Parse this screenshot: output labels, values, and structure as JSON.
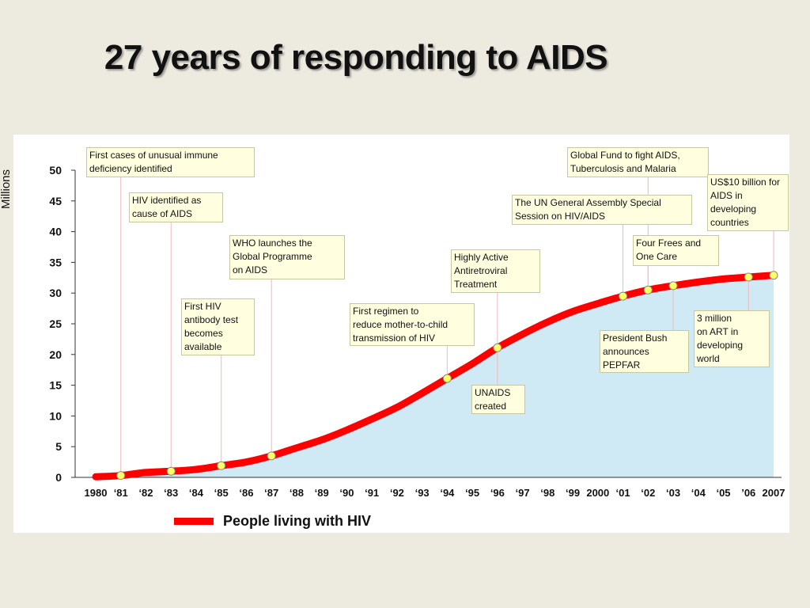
{
  "slide_title": "27 years of responding to AIDS",
  "colors": {
    "line": "#ff0000",
    "area": "#cfeaf5",
    "marker": "#ffff66",
    "guide": "#f0b8b8",
    "annotation_bg": "#ffffe0"
  },
  "chart_data": {
    "type": "area",
    "title": "27 years of responding to AIDS",
    "ylabel": "Millions",
    "xlabel": "",
    "ylim": [
      0,
      50
    ],
    "yticks": [
      0,
      5,
      10,
      15,
      20,
      25,
      30,
      35,
      40,
      45,
      50
    ],
    "categories": [
      "1980",
      "‘81",
      "‘82",
      "‘83",
      "‘84",
      "‘85",
      "‘86",
      "‘87",
      "‘88",
      "‘89",
      "‘90",
      "‘91",
      "‘92",
      "‘93",
      "‘94",
      "‘95",
      "‘96",
      "‘97",
      "‘98",
      "‘99",
      "2000",
      "‘01",
      "‘02",
      "‘03",
      "‘04",
      "‘05",
      "’06",
      "2007"
    ],
    "series": [
      {
        "name": "People living with HIV",
        "values": [
          0.1,
          0.3,
          0.8,
          1.0,
          1.3,
          1.9,
          2.5,
          3.5,
          4.8,
          6.1,
          7.7,
          9.5,
          11.4,
          13.7,
          16.1,
          18.5,
          21.1,
          23.3,
          25.3,
          27.0,
          28.3,
          29.5,
          30.5,
          31.2,
          31.8,
          32.3,
          32.6,
          32.9
        ]
      }
    ],
    "markers": [
      {
        "x": "‘81",
        "text": "First cases of unusual immune\ndeficiency identified"
      },
      {
        "x": "‘83",
        "text": "HIV identified as\ncause of AIDS"
      },
      {
        "x": "‘85",
        "text": "First HIV\nantibody test\nbecomes\navailable"
      },
      {
        "x": "‘87",
        "text": "WHO launches the\nGlobal Programme\non AIDS"
      },
      {
        "x": "‘94",
        "text": "First regimen to\nreduce mother-to-child\ntransmission of HIV"
      },
      {
        "x": "‘96",
        "text": "Highly Active\nAntiretroviral\nTreatment"
      },
      {
        "x": "‘96",
        "text": "UNAIDS\ncreated"
      },
      {
        "x": "‘01",
        "text": "The UN General Assembly Special\nSession on HIV/AIDS"
      },
      {
        "x": "‘02",
        "text": "Global Fund to fight AIDS,\nTuberculosis and Malaria"
      },
      {
        "x": "‘02",
        "text": "Four Frees and\nOne Care"
      },
      {
        "x": "‘03",
        "text": "President Bush\nannounces PEPFAR"
      },
      {
        "x": "’06",
        "text": "3 million\non ART in\ndeveloping\nworld"
      },
      {
        "x": "2007",
        "text": "US$10 billion for\nAIDS in\ndeveloping\ncountries"
      }
    ],
    "legend": "bottom-left",
    "grid": false
  }
}
